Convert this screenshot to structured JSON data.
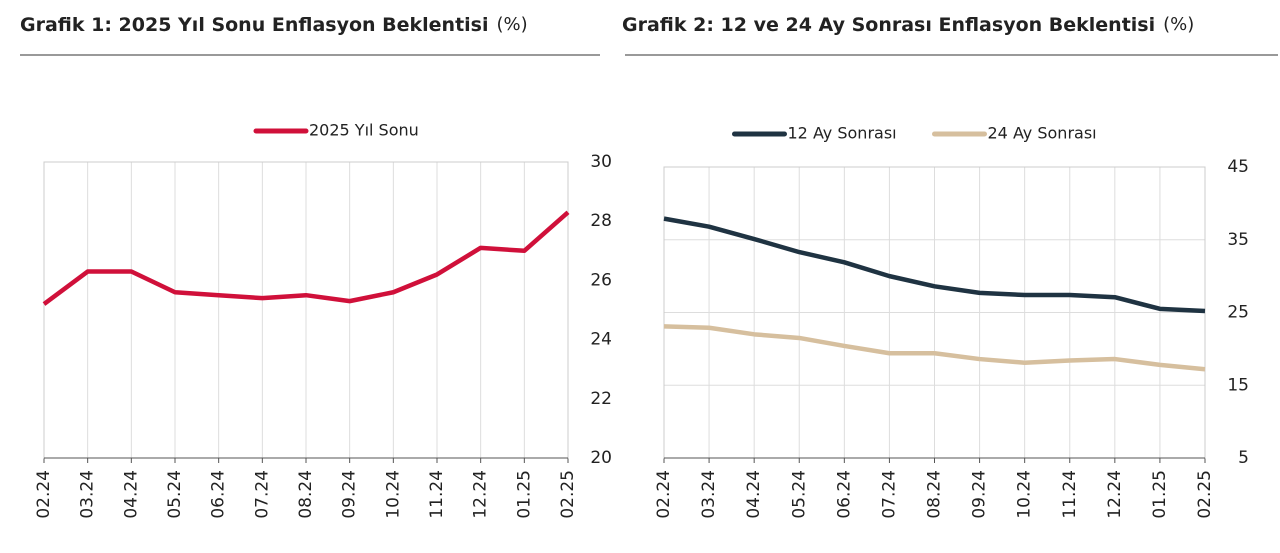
{
  "chart_data": [
    {
      "type": "line",
      "title": "Grafik 1: 2025 Yıl Sonu Enflasyon Beklentisi",
      "unit": "(%)",
      "categories": [
        "02.24",
        "03.24",
        "04.24",
        "05.24",
        "06.24",
        "07.24",
        "08.24",
        "09.24",
        "10.24",
        "11.24",
        "12.24",
        "01.25",
        "02.25"
      ],
      "series": [
        {
          "name": "2025 Yıl Sonu",
          "color": "#d0103a",
          "values": [
            25.2,
            26.3,
            26.3,
            25.6,
            25.5,
            25.4,
            25.5,
            25.3,
            25.6,
            26.2,
            27.1,
            27.0,
            28.3
          ]
        }
      ],
      "ylim": [
        20,
        30
      ],
      "yticks": [
        20,
        22,
        24,
        26,
        28,
        30
      ],
      "grid": "vertical"
    },
    {
      "type": "line",
      "title": "Grafik 2: 12 ve 24 Ay Sonrası Enflasyon Beklentisi",
      "unit": "(%)",
      "categories": [
        "02.24",
        "03.24",
        "04.24",
        "05.24",
        "06.24",
        "07.24",
        "08.24",
        "09.24",
        "10.24",
        "11.24",
        "12.24",
        "01.25",
        "02.25"
      ],
      "series": [
        {
          "name": "12 Ay Sonrası",
          "color": "#1f3342",
          "values": [
            37.9,
            36.8,
            35.1,
            33.3,
            31.9,
            30.0,
            28.6,
            27.7,
            27.4,
            27.4,
            27.1,
            25.5,
            25.2
          ]
        },
        {
          "name": "24 Ay Sonrası",
          "color": "#d6bf9e",
          "values": [
            23.1,
            22.9,
            22.0,
            21.5,
            20.4,
            19.4,
            19.4,
            18.6,
            18.1,
            18.4,
            18.6,
            17.8,
            17.2
          ]
        }
      ],
      "ylim": [
        5,
        45
      ],
      "yticks": [
        5,
        15,
        25,
        35,
        45
      ],
      "grid": "both"
    }
  ]
}
